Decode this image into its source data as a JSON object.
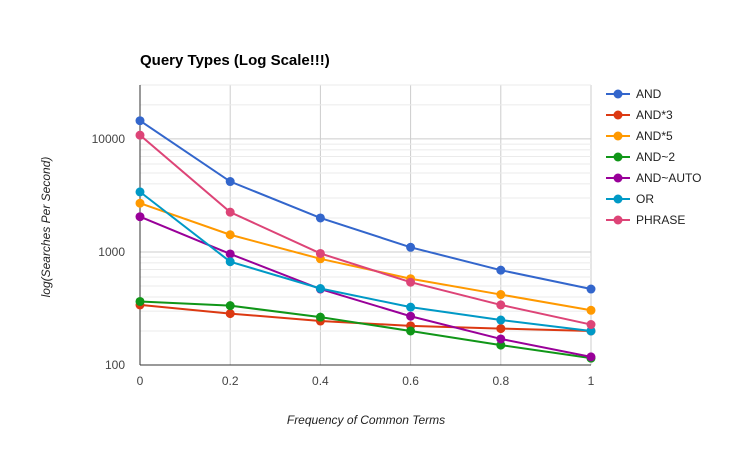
{
  "chart_data": {
    "type": "line",
    "title": "Query Types (Log Scale!!!)",
    "xlabel": "Frequency of Common Terms",
    "ylabel": "log(Searches Per Second)",
    "y_scale": "log",
    "ylim": [
      100,
      30000
    ],
    "xlim": [
      0,
      1
    ],
    "x": [
      0,
      0.2,
      0.4,
      0.6,
      0.8,
      1
    ],
    "x_tick_labels": [
      "0",
      "0.2",
      "0.4",
      "0.6",
      "0.8",
      "1"
    ],
    "y_ticks": [
      100,
      1000,
      10000
    ],
    "y_tick_labels": [
      "100",
      "1000",
      "10000"
    ],
    "grid": true,
    "legend_position": "right",
    "series": [
      {
        "name": "AND",
        "color": "#3366cc",
        "values": [
          14500,
          4200,
          2000,
          1100,
          690,
          470
        ]
      },
      {
        "name": "AND*3",
        "color": "#dc3912",
        "values": [
          340,
          285,
          245,
          222,
          210,
          200
        ]
      },
      {
        "name": "AND*5",
        "color": "#ff9900",
        "values": [
          2700,
          1420,
          870,
          580,
          420,
          305
        ]
      },
      {
        "name": "AND~2",
        "color": "#109618",
        "values": [
          365,
          335,
          265,
          200,
          150,
          115
        ]
      },
      {
        "name": "AND~AUTO",
        "color": "#990099",
        "values": [
          2050,
          960,
          470,
          270,
          170,
          118
        ]
      },
      {
        "name": "OR",
        "color": "#0099c6",
        "values": [
          3400,
          820,
          475,
          325,
          250,
          200
        ]
      },
      {
        "name": "PHRASE",
        "color": "#dd4477",
        "values": [
          10800,
          2250,
          970,
          540,
          340,
          228
        ]
      }
    ]
  }
}
